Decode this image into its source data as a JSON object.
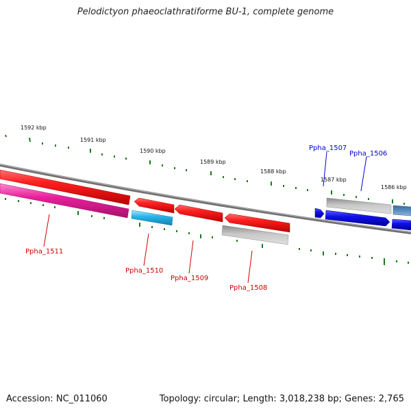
{
  "title": "Pelodictyon phaeoclathratiforme BU-1, complete genome",
  "footer": {
    "accession_label": "Accession:",
    "accession": "NC_011060",
    "topology_label": "Topology:",
    "topology": "circular",
    "length_label": "Length:",
    "length": "3,018,238 bp",
    "genes_label": "Genes:",
    "genes": "2,765"
  },
  "scale_labels": [
    "1592 kbp",
    "1591 kbp",
    "1590 kbp",
    "1589 kbp",
    "1588 kbp",
    "1587 kbp",
    "1586 kbp"
  ],
  "genes": [
    {
      "id": "Ppha_1511",
      "strand": "-",
      "color": "#e8209a"
    },
    {
      "id": "Ppha_1510",
      "strand": "-",
      "color": "#29b6e8"
    },
    {
      "id": "Ppha_1509",
      "strand": "+",
      "color": "#e81010"
    },
    {
      "id": "Ppha_1508",
      "strand": "-",
      "color": "#b4b4b4"
    },
    {
      "id": "Ppha_1507",
      "strand": "+",
      "color": "#b4b4b4"
    },
    {
      "id": "Ppha_1506",
      "strand": "-",
      "color": "#1010e8"
    }
  ],
  "colors": {
    "label_minus_strand": "#cc0000",
    "label_plus_strand": "#0000cc",
    "tick": "#1a7a1a",
    "backbone": "#777777"
  }
}
